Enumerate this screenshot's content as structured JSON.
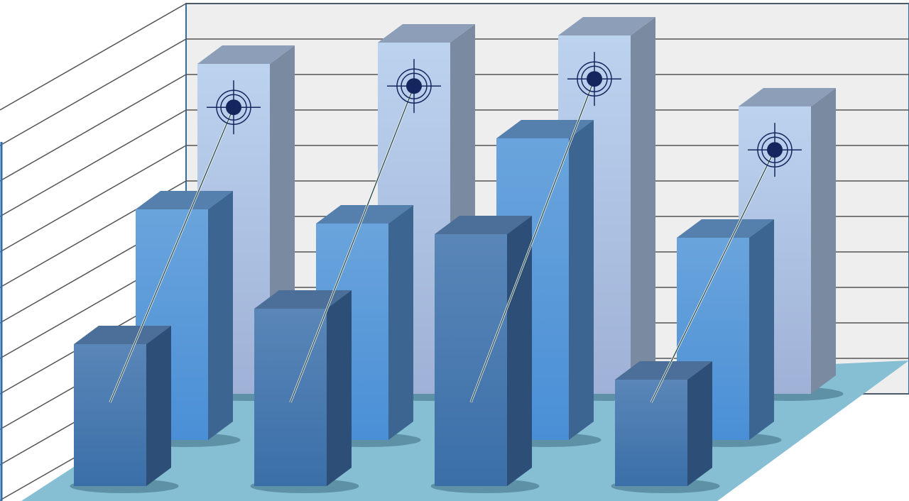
{
  "chart_data": {
    "type": "bar",
    "style": "3d-clustered",
    "title": "",
    "xlabel": "",
    "ylabel": "",
    "grid": true,
    "legend": "none",
    "ylim": [
      0,
      11
    ],
    "categories": [
      "",
      "",
      "",
      ""
    ],
    "series": [
      {
        "values": [
          9.3,
          9.9,
          10.1,
          8.1
        ],
        "color": "#b4cdeb",
        "markers": "target-icon"
      },
      {
        "values": [
          6.5,
          6.1,
          8.5,
          5.7
        ],
        "color": "#5b9bd9"
      },
      {
        "values": [
          4.0,
          5.0,
          7.1,
          3.0
        ],
        "color": "#4a7fb5"
      }
    ],
    "colors": {
      "back_wall": "#eeeeee",
      "gridline": "#555555",
      "floor": "#86bfd3",
      "target": "#13275e"
    }
  }
}
